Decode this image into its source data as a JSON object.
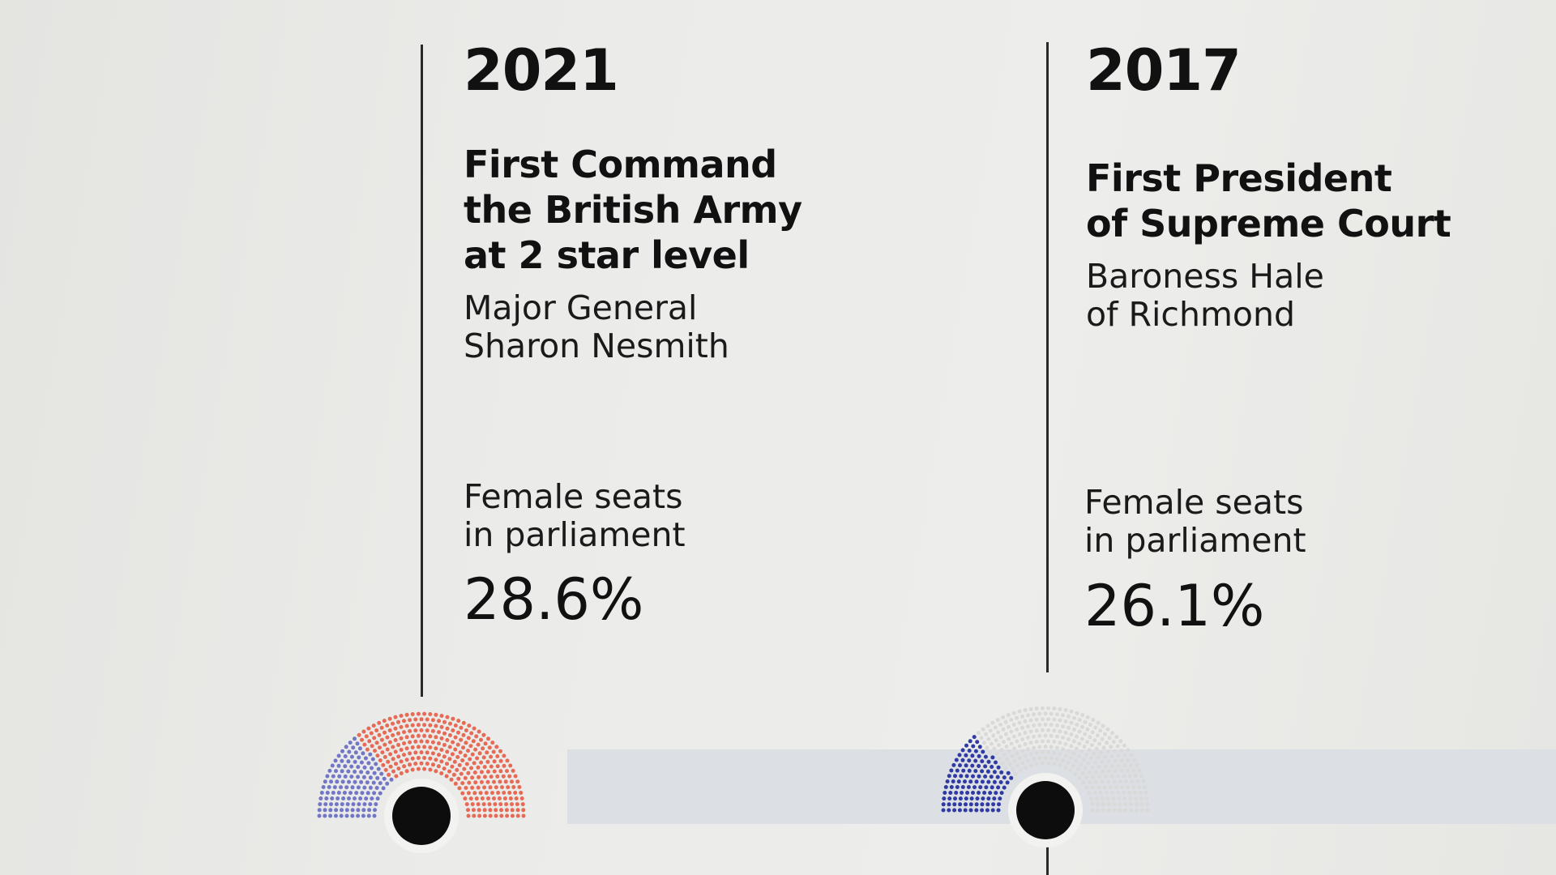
{
  "colors": {
    "female": "#e66a55",
    "male_2021": "#7177c6",
    "male_2017": "#2f3aa3",
    "empty_seat": "#d9d9d9",
    "marker": "#0d0d0d",
    "timeline_band": "#dcdfe3"
  },
  "entries": [
    {
      "year": "2021",
      "headline": "First Command\nthe British Army\nat 2 star level",
      "person": "Major General\nSharon Nesmith",
      "metric_label": "Female seats\nin parliament",
      "metric_value": "28.6%",
      "female_share": 0.286
    },
    {
      "year": "2017",
      "headline": "First President\nof Supreme Court",
      "person": "Baroness Hale\nof Richmond",
      "metric_label": "Female seats\nin parliament",
      "metric_value": "26.1%",
      "female_share": 0.261
    }
  ]
}
